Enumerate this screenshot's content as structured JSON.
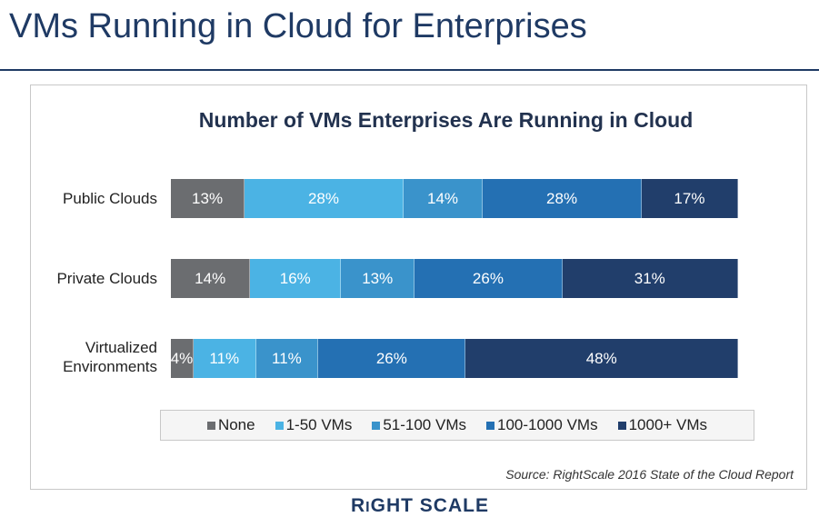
{
  "slide_title": "VMs Running in Cloud for Enterprises",
  "logo": "RIGHTSCALE",
  "chart_data": {
    "type": "bar",
    "orientation": "horizontal-stacked-100",
    "title": "Number of VMs Enterprises Are Running in Cloud",
    "categories": [
      "Public Clouds",
      "Private Clouds",
      "Virtualized Environments"
    ],
    "series": [
      {
        "name": "None",
        "color": "#6b6d70",
        "values": [
          13,
          14,
          4
        ]
      },
      {
        "name": "1-50 VMs",
        "color": "#4bb3e4",
        "values": [
          28,
          16,
          11
        ]
      },
      {
        "name": "51-100 VMs",
        "color": "#3a93cb",
        "values": [
          14,
          13,
          11
        ]
      },
      {
        "name": "100-1000 VMs",
        "color": "#2470b3",
        "values": [
          28,
          26,
          26
        ]
      },
      {
        "name": "1000+ VMs",
        "color": "#213e6b",
        "values": [
          17,
          31,
          48
        ]
      }
    ],
    "legend": "bottom",
    "xlim": [
      0,
      100
    ],
    "source": "Source: RightScale 2016 State of the Cloud Report"
  }
}
